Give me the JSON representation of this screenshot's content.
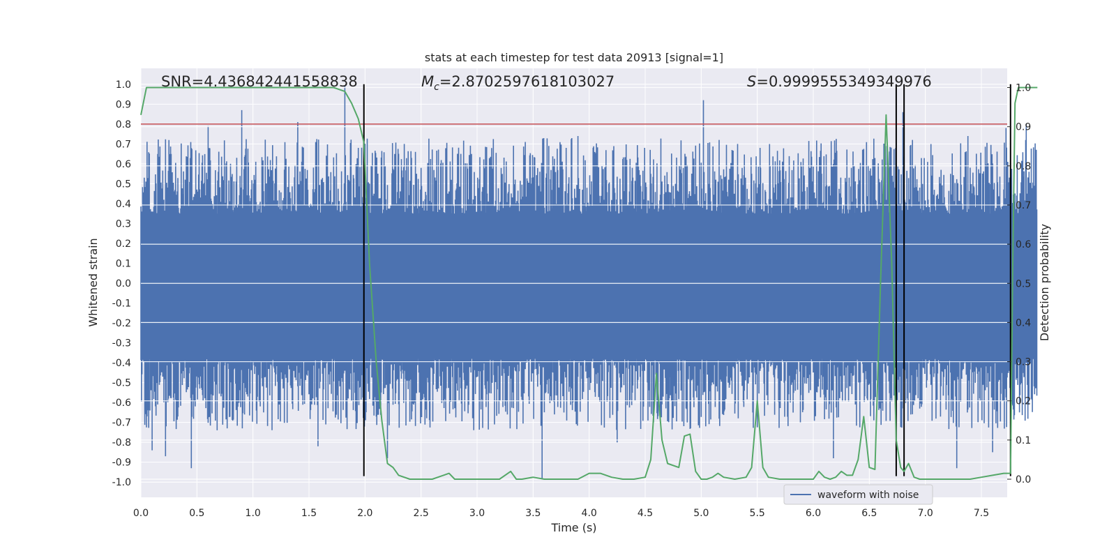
{
  "chart_data": {
    "type": "line",
    "title": "stats at each timestep for test data 20913 [signal=1]",
    "xlabel": "Time (s)",
    "ylabel": "Whitened strain",
    "y2label": "Detection probability",
    "xlim": [
      0.0,
      8.0
    ],
    "ylim": [
      -1.05,
      1.05
    ],
    "y2lim": [
      -0.05,
      1.05
    ],
    "x_ticks": [
      "0.0",
      "0.5",
      "1.0",
      "1.5",
      "2.0",
      "2.5",
      "3.0",
      "3.5",
      "4.0",
      "4.5",
      "5.0",
      "5.5",
      "6.0",
      "6.5",
      "7.0",
      "7.5"
    ],
    "y_ticks": [
      "1.0",
      "0.9",
      "0.8",
      "0.7",
      "0.6",
      "0.5",
      "0.4",
      "0.3",
      "0.2",
      "0.1",
      "0.0",
      "-0.1",
      "-0.2",
      "-0.3",
      "-0.4",
      "-0.5",
      "-0.6",
      "-0.7",
      "-0.8",
      "-0.9",
      "-1.0"
    ],
    "y2_ticks": [
      "1.0",
      "0.9",
      "0.8",
      "0.7",
      "0.6",
      "0.5",
      "0.4",
      "0.3",
      "0.2",
      "0.1",
      "0.0"
    ],
    "grid": true,
    "legend": {
      "placement": "lower-right",
      "entries": [
        {
          "label": "waveform with noise",
          "color": "#4c72b0"
        }
      ]
    },
    "annotations": {
      "snr": "SNR=4.436842441558838",
      "mc_symbol": "M",
      "mc_sub": "c",
      "mc_value": "=2.8702597618103027",
      "s_symbol": "S",
      "s_value": "=0.9999555349349976"
    },
    "threshold": {
      "y": 0.8,
      "color": "#c44e52"
    },
    "vlines": [
      1.99,
      6.74,
      6.81,
      7.76
    ],
    "vline_range": [
      -0.97,
      1.0
    ],
    "probability_series": {
      "color": "#55a868",
      "x": [
        0.0,
        0.05,
        0.1,
        0.2,
        0.4,
        0.6,
        0.8,
        1.0,
        1.2,
        1.4,
        1.6,
        1.72,
        1.82,
        1.88,
        1.94,
        1.99,
        2.04,
        2.1,
        2.15,
        2.2,
        2.25,
        2.3,
        2.4,
        2.5,
        2.6,
        2.7,
        2.75,
        2.8,
        2.9,
        3.0,
        3.1,
        3.2,
        3.3,
        3.35,
        3.4,
        3.5,
        3.6,
        3.7,
        3.8,
        3.9,
        4.0,
        4.1,
        4.2,
        4.3,
        4.4,
        4.5,
        4.55,
        4.6,
        4.65,
        4.7,
        4.8,
        4.85,
        4.9,
        4.95,
        5.0,
        5.05,
        5.1,
        5.15,
        5.2,
        5.3,
        5.4,
        5.45,
        5.5,
        5.55,
        5.6,
        5.7,
        5.8,
        5.9,
        6.0,
        6.05,
        6.1,
        6.15,
        6.2,
        6.25,
        6.3,
        6.35,
        6.4,
        6.45,
        6.5,
        6.55,
        6.6,
        6.65,
        6.7,
        6.74,
        6.78,
        6.81,
        6.85,
        6.9,
        6.95,
        7.0,
        7.05,
        7.1,
        7.15,
        7.2,
        7.3,
        7.4,
        7.5,
        7.6,
        7.7,
        7.76,
        7.78,
        7.8,
        7.83,
        7.88,
        7.93,
        8.0
      ],
      "y": [
        0.93,
        1.0,
        1.0,
        1.0,
        1.0,
        1.0,
        1.0,
        1.0,
        1.0,
        1.0,
        1.0,
        1.0,
        0.99,
        0.96,
        0.92,
        0.86,
        0.55,
        0.3,
        0.15,
        0.04,
        0.03,
        0.01,
        0.0,
        0.0,
        0.0,
        0.01,
        0.015,
        0.0,
        0.0,
        0.0,
        0.0,
        0.0,
        0.02,
        0.0,
        0.0,
        0.005,
        0.0,
        0.0,
        0.0,
        0.0,
        0.015,
        0.015,
        0.005,
        0.0,
        0.0,
        0.005,
        0.05,
        0.27,
        0.1,
        0.04,
        0.03,
        0.11,
        0.115,
        0.02,
        0.0,
        0.0,
        0.005,
        0.015,
        0.005,
        0.0,
        0.005,
        0.03,
        0.2,
        0.03,
        0.005,
        0.0,
        0.0,
        0.0,
        0.0,
        0.02,
        0.005,
        0.0,
        0.005,
        0.02,
        0.01,
        0.01,
        0.05,
        0.16,
        0.03,
        0.025,
        0.5,
        0.93,
        0.55,
        0.1,
        0.03,
        0.02,
        0.04,
        0.005,
        0.0,
        0.0,
        0.0,
        0.0,
        0.0,
        0.0,
        0.0,
        0.0,
        0.005,
        0.01,
        0.015,
        0.015,
        0.55,
        0.96,
        1.0,
        1.0,
        1.0,
        1.0
      ]
    },
    "waveform": {
      "name": "waveform with noise",
      "color": "#4c72b0",
      "dt": 0.005,
      "core_upper": 0.35,
      "core_lower": -0.38,
      "seed": 20913,
      "peaks": [
        {
          "x": 0.25,
          "y": 0.72
        },
        {
          "x": 0.6,
          "y": 0.79
        },
        {
          "x": 0.9,
          "y": 0.87
        },
        {
          "x": 1.4,
          "y": 0.81
        },
        {
          "x": 1.82,
          "y": 0.99
        },
        {
          "x": 2.35,
          "y": 0.7
        },
        {
          "x": 3.9,
          "y": 0.74
        },
        {
          "x": 5.02,
          "y": 0.92
        },
        {
          "x": 6.8,
          "y": 0.86
        },
        {
          "x": 7.38,
          "y": 0.74
        },
        {
          "x": 7.72,
          "y": 0.78
        },
        {
          "x": 7.9,
          "y": 0.8
        },
        {
          "x": 0.45,
          "y": -0.93
        },
        {
          "x": 0.22,
          "y": -0.87
        },
        {
          "x": 0.1,
          "y": -0.84
        },
        {
          "x": 2.2,
          "y": -0.88
        },
        {
          "x": 3.58,
          "y": -0.98
        },
        {
          "x": 7.28,
          "y": -0.93
        },
        {
          "x": 7.6,
          "y": -0.85
        },
        {
          "x": 6.18,
          "y": -0.88
        },
        {
          "x": 1.58,
          "y": -0.82
        },
        {
          "x": 4.25,
          "y": -0.8
        }
      ]
    }
  }
}
